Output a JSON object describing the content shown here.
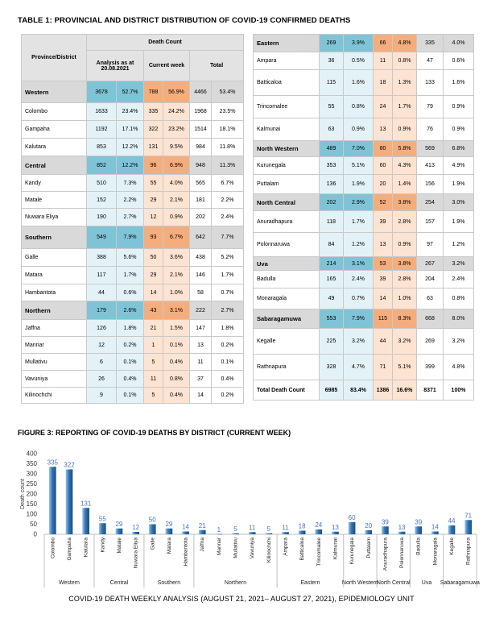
{
  "table": {
    "title": "TABLE 1: PROVINCIAL AND DISTRICT DISTRIBUTION OF COVID-19 CONFIRMED DEATHS",
    "headers": {
      "province_district": "Province/District",
      "death_count": "Death Count",
      "analysis": "Analysis as at 20.08.2021",
      "current_week": "Current week",
      "total": "Total"
    },
    "left": [
      {
        "type": "group",
        "name": "Western",
        "a": "3678",
        "ap": "52.7%",
        "c": "788",
        "cp": "56.9%",
        "t": "4466",
        "tp": "53.4%"
      },
      {
        "type": "row",
        "name": "Colombo",
        "a": "1633",
        "ap": "23.4%",
        "c": "335",
        "cp": "24.2%",
        "t": "1968",
        "tp": "23.5%"
      },
      {
        "type": "row",
        "name": "Gampaha",
        "a": "1192",
        "ap": "17.1%",
        "c": "322",
        "cp": "23.2%",
        "t": "1514",
        "tp": "18.1%"
      },
      {
        "type": "row",
        "name": "Kalutara",
        "a": "853",
        "ap": "12.2%",
        "c": "131",
        "cp": "9.5%",
        "t": "984",
        "tp": "11.8%"
      },
      {
        "type": "group",
        "name": "Central",
        "a": "852",
        "ap": "12.2%",
        "c": "96",
        "cp": "6.9%",
        "t": "948",
        "tp": "11.3%"
      },
      {
        "type": "row",
        "name": "Kandy",
        "a": "510",
        "ap": "7.3%",
        "c": "55",
        "cp": "4.0%",
        "t": "565",
        "tp": "6.7%"
      },
      {
        "type": "row",
        "name": "Matale",
        "a": "152",
        "ap": "2.2%",
        "c": "29",
        "cp": "2.1%",
        "t": "181",
        "tp": "2.2%"
      },
      {
        "type": "row",
        "name": "Nuwara Eliya",
        "a": "190",
        "ap": "2.7%",
        "c": "12",
        "cp": "0.9%",
        "t": "202",
        "tp": "2.4%"
      },
      {
        "type": "group",
        "name": "Southern",
        "a": "549",
        "ap": "7.9%",
        "c": "93",
        "cp": "6.7%",
        "t": "642",
        "tp": "7.7%"
      },
      {
        "type": "row",
        "name": "Galle",
        "a": "388",
        "ap": "5.6%",
        "c": "50",
        "cp": "3.6%",
        "t": "438",
        "tp": "5.2%"
      },
      {
        "type": "row",
        "name": "Matara",
        "a": "117",
        "ap": "1.7%",
        "c": "29",
        "cp": "2.1%",
        "t": "146",
        "tp": "1.7%"
      },
      {
        "type": "row",
        "name": "Hambantota",
        "a": "44",
        "ap": "0.6%",
        "c": "14",
        "cp": "1.0%",
        "t": "58",
        "tp": "0.7%"
      },
      {
        "type": "group",
        "name": "Northern",
        "a": "179",
        "ap": "2.6%",
        "c": "43",
        "cp": "3.1%",
        "t": "222",
        "tp": "2.7%"
      },
      {
        "type": "row",
        "name": "Jaffna",
        "a": "126",
        "ap": "1.8%",
        "c": "21",
        "cp": "1.5%",
        "t": "147",
        "tp": "1.8%"
      },
      {
        "type": "row",
        "name": "Mannar",
        "a": "12",
        "ap": "0.2%",
        "c": "1",
        "cp": "0.1%",
        "t": "13",
        "tp": "0.2%"
      },
      {
        "type": "row",
        "name": "Mullativu",
        "a": "6",
        "ap": "0.1%",
        "c": "5",
        "cp": "0.4%",
        "t": "11",
        "tp": "0.1%"
      },
      {
        "type": "row",
        "name": "Vavuniya",
        "a": "26",
        "ap": "0.4%",
        "c": "11",
        "cp": "0.8%",
        "t": "37",
        "tp": "0.4%"
      },
      {
        "type": "row",
        "name": "Kilinochchi",
        "a": "9",
        "ap": "0.1%",
        "c": "5",
        "cp": "0.4%",
        "t": "14",
        "tp": "0.2%"
      }
    ],
    "right": [
      {
        "type": "group",
        "name": "Eastern",
        "a": "269",
        "ap": "3.9%",
        "c": "66",
        "cp": "4.8%",
        "t": "335",
        "tp": "4.0%"
      },
      {
        "type": "row",
        "name": "Ampara",
        "a": "36",
        "ap": "0.5%",
        "c": "11",
        "cp": "0.8%",
        "t": "47",
        "tp": "0.6%"
      },
      {
        "type": "row",
        "name": "Batticaloa",
        "a": "115",
        "ap": "1.6%",
        "c": "18",
        "cp": "1.3%",
        "t": "133",
        "tp": "1.6%"
      },
      {
        "type": "row",
        "name": "Trincomalee",
        "a": "55",
        "ap": "0.8%",
        "c": "24",
        "cp": "1.7%",
        "t": "79",
        "tp": "0.9%"
      },
      {
        "type": "row",
        "name": "Kalmunai",
        "a": "63",
        "ap": "0.9%",
        "c": "13",
        "cp": "0.9%",
        "t": "76",
        "tp": "0.9%"
      },
      {
        "type": "group",
        "name": "North Western",
        "a": "489",
        "ap": "7.0%",
        "c": "80",
        "cp": "5.8%",
        "t": "569",
        "tp": "6.8%"
      },
      {
        "type": "row",
        "name": "Kurunegala",
        "a": "353",
        "ap": "5.1%",
        "c": "60",
        "cp": "4.3%",
        "t": "413",
        "tp": "4.9%"
      },
      {
        "type": "row",
        "name": "Puttalam",
        "a": "136",
        "ap": "1.9%",
        "c": "20",
        "cp": "1.4%",
        "t": "156",
        "tp": "1.9%"
      },
      {
        "type": "group",
        "name": "North Central",
        "a": "202",
        "ap": "2.9%",
        "c": "52",
        "cp": "3.8%",
        "t": "254",
        "tp": "3.0%"
      },
      {
        "type": "row",
        "name": "Anuradhapura",
        "a": "118",
        "ap": "1.7%",
        "c": "39",
        "cp": "2.8%",
        "t": "157",
        "tp": "1.9%"
      },
      {
        "type": "row",
        "name": "Polonnaruwa",
        "a": "84",
        "ap": "1.2%",
        "c": "13",
        "cp": "0.9%",
        "t": "97",
        "tp": "1.2%"
      },
      {
        "type": "group",
        "name": "Uva",
        "a": "214",
        "ap": "3.1%",
        "c": "53",
        "cp": "3.8%",
        "t": "267",
        "tp": "3.2%"
      },
      {
        "type": "row",
        "name": "Badulla",
        "a": "165",
        "ap": "2.4%",
        "c": "39",
        "cp": "2.8%",
        "t": "204",
        "tp": "2.4%"
      },
      {
        "type": "row",
        "name": "Monaragala",
        "a": "49",
        "ap": "0.7%",
        "c": "14",
        "cp": "1.0%",
        "t": "63",
        "tp": "0.8%"
      },
      {
        "type": "group",
        "name": "Sabaragamuwa",
        "a": "553",
        "ap": "7.9%",
        "c": "115",
        "cp": "8.3%",
        "t": "668",
        "tp": "8.0%"
      },
      {
        "type": "row",
        "name": "Kegalle",
        "a": "225",
        "ap": "3.2%",
        "c": "44",
        "cp": "3.2%",
        "t": "269",
        "tp": "3.2%"
      },
      {
        "type": "row",
        "name": "Rathnapura",
        "a": "328",
        "ap": "4.7%",
        "c": "71",
        "cp": "5.1%",
        "t": "399",
        "tp": "4.8%"
      },
      {
        "type": "total",
        "name": "Total Death Count",
        "a": "6985",
        "ap": "83.4%",
        "c": "1386",
        "cp": "16.6%",
        "t": "8371",
        "tp": "100%"
      }
    ]
  },
  "figure": {
    "title": "FIGURE 3: REPORTING OF COVID-19 DEATHS BY DISTRICT (CURRENT WEEK)"
  },
  "chart_data": {
    "type": "bar",
    "ylabel": "Death count",
    "ylim": [
      0,
      400
    ],
    "yticks": [
      0,
      50,
      100,
      150,
      200,
      250,
      300,
      350,
      400
    ],
    "grid": false,
    "categories": [
      "Colombo",
      "Gampaha",
      "Kalutara",
      "Kandy",
      "Matale",
      "Nuwara Eliya",
      "Galle",
      "Matara",
      "Hambantota",
      "Jaffna",
      "Mannar",
      "Mullativu",
      "Vavuniya",
      "Kilinochchi",
      "Ampara",
      "Batticaloa",
      "Trincomalee",
      "Kalmunai",
      "Kurunegala",
      "Puttalam",
      "Anuradhapura",
      "Polonnaruwa",
      "Badulla",
      "Monaragala",
      "Kegalle",
      "Rathnapura"
    ],
    "values": [
      335,
      322,
      131,
      55,
      29,
      12,
      50,
      29,
      14,
      21,
      1,
      5,
      11,
      5,
      11,
      18,
      24,
      13,
      60,
      20,
      39,
      13,
      39,
      14,
      44,
      71
    ],
    "groups": [
      {
        "name": "Western",
        "count": 3
      },
      {
        "name": "Central",
        "count": 3
      },
      {
        "name": "Southern",
        "count": 3
      },
      {
        "name": "Northern",
        "count": 5
      },
      {
        "name": "Eastern",
        "count": 4
      },
      {
        "name": "North Western",
        "count": 2
      },
      {
        "name": "North Central",
        "count": 2
      },
      {
        "name": "Uva",
        "count": 2
      },
      {
        "name": "Sabaragamuwa",
        "count": 2
      }
    ],
    "bar_color": "#2e75b6"
  },
  "footer": "COVID-19 DEATH WEEKLY ANALYSIS (AUGUST 21, 2021– AUGUST 27, 2021), EPIDEMIOLOGY UNIT"
}
